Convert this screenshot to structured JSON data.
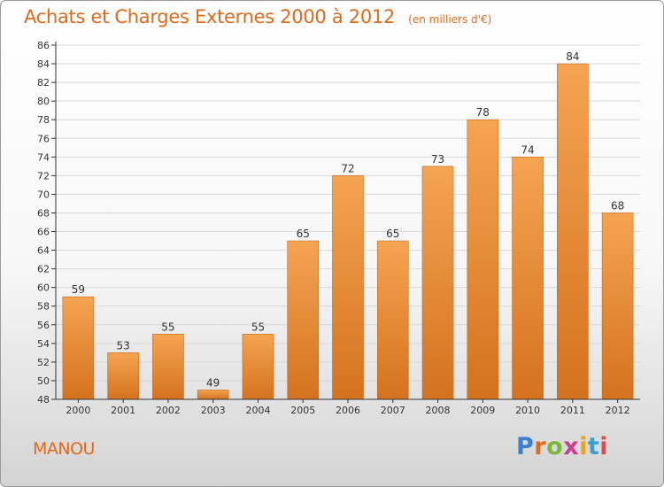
{
  "header": {
    "title": "Achats et Charges Externes 2000 à 2012",
    "subtitle": "(en milliers d'€)"
  },
  "footer": {
    "commune": "MANOU",
    "brand": "Proxiti",
    "brand_colors": [
      "#3a7fd0",
      "#e0691a",
      "#7ab83a",
      "#d03a8a",
      "#e8a020",
      "#3aa0d0",
      "#e04a4a"
    ]
  },
  "colors": {
    "bar_top": "#f5a452",
    "bar_bottom": "#d4721e",
    "text_accent": "#e0691a",
    "axis": "#333333",
    "grid": "#d8d8d8"
  },
  "chart_data": {
    "type": "bar",
    "title": "Achats et Charges Externes 2000 à 2012",
    "subtitle": "(en milliers d'€)",
    "categories": [
      "2000",
      "2001",
      "2002",
      "2003",
      "2004",
      "2005",
      "2006",
      "2007",
      "2008",
      "2009",
      "2010",
      "2011",
      "2012"
    ],
    "values": [
      59,
      53,
      55,
      49,
      55,
      65,
      72,
      65,
      73,
      78,
      74,
      84,
      68
    ],
    "ylim": [
      48,
      86
    ],
    "yticks": [
      48,
      50,
      52,
      54,
      56,
      58,
      60,
      62,
      64,
      66,
      68,
      70,
      72,
      74,
      76,
      78,
      80,
      82,
      84,
      86
    ],
    "grid": true,
    "data_labels": true
  }
}
